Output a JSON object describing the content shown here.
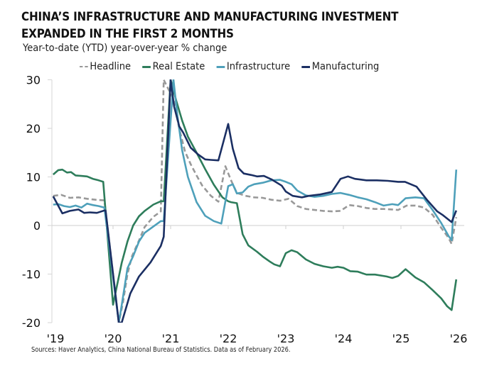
{
  "chart_data": {
    "type": "line",
    "title": "CHINA’S INFRASTRUCTURE AND MANUFACTURING INVESTMENT EXPANDED IN THE FIRST 2 MONTHS",
    "subtitle": "Year-to-date (YTD) year-over-year % change",
    "xlabel": "",
    "ylabel": "",
    "ylim": [
      -20,
      30
    ],
    "xlim": [
      2019,
      2026
    ],
    "yticks": [
      30,
      20,
      10,
      0,
      -10,
      -20
    ],
    "ytick_labels": [
      "30",
      "20",
      "10",
      "0",
      "-10",
      "-20"
    ],
    "xticks": [
      2019,
      2020,
      2021,
      2022,
      2023,
      2024,
      2025,
      2026
    ],
    "xtick_labels": [
      "'19",
      "'20",
      "'21",
      "'22",
      "'23",
      "'24",
      "'25",
      "'26"
    ],
    "grid": false,
    "legend_position": "top",
    "series": [
      {
        "name": "Headline",
        "color": "#999999",
        "style": "dashed",
        "x": [
          2018.96,
          2019.1,
          2019.25,
          2019.4,
          2019.55,
          2019.7,
          2019.83,
          2019.85,
          2020.1,
          2020.17,
          2020.25,
          2020.33,
          2020.45,
          2020.55,
          2020.7,
          2020.83,
          2020.88,
          2021.05,
          2021.15,
          2021.25,
          2021.35,
          2021.45,
          2021.55,
          2021.7,
          2021.83,
          2021.95,
          2022.05,
          2022.15,
          2022.3,
          2022.45,
          2022.6,
          2022.75,
          2022.9,
          2023.05,
          2023.2,
          2023.35,
          2023.5,
          2023.65,
          2023.8,
          2023.95,
          2024.1,
          2024.25,
          2024.4,
          2024.55,
          2024.7,
          2024.85,
          2024.95,
          2025.1,
          2025.25,
          2025.4,
          2025.55,
          2025.7,
          2025.83,
          2025.88,
          2025.96
        ],
        "values": [
          6.1,
          6.3,
          5.7,
          5.8,
          5.5,
          5.3,
          5.2,
          5.2,
          -20,
          -16,
          -10,
          -6.3,
          -3.1,
          -0.3,
          1.8,
          2.9,
          30,
          26,
          19.9,
          15.2,
          12.6,
          10.3,
          8.2,
          6.1,
          4.9,
          12.2,
          9.3,
          6.7,
          6.1,
          5.8,
          5.7,
          5.3,
          5.1,
          5.5,
          4.0,
          3.4,
          3.2,
          3.0,
          2.9,
          3.0,
          4.2,
          4.0,
          3.6,
          3.4,
          3.4,
          3.3,
          3.2,
          4.1,
          4.1,
          3.7,
          2.2,
          -0.5,
          -2.6,
          -3.8,
          1.7
        ]
      },
      {
        "name": "Real Estate",
        "color": "#2e7d5b",
        "style": "solid",
        "x": [
          2018.96,
          2019.05,
          2019.12,
          2019.2,
          2019.27,
          2019.35,
          2019.45,
          2019.55,
          2019.65,
          2019.75,
          2019.83,
          2020.0,
          2020.15,
          2020.25,
          2020.35,
          2020.45,
          2020.55,
          2020.7,
          2020.83,
          2020.88,
          2021.0,
          2021.1,
          2021.2,
          2021.3,
          2021.45,
          2021.6,
          2021.75,
          2021.9,
          2022.0,
          2022.05,
          2022.15,
          2022.25,
          2022.35,
          2022.5,
          2022.6,
          2022.72,
          2022.8,
          2022.9,
          2023.0,
          2023.1,
          2023.2,
          2023.35,
          2023.5,
          2023.65,
          2023.8,
          2023.9,
          2024.0,
          2024.12,
          2024.25,
          2024.4,
          2024.55,
          2024.75,
          2024.85,
          2024.95,
          2025.08,
          2025.25,
          2025.4,
          2025.55,
          2025.7,
          2025.8,
          2025.88,
          2025.96
        ],
        "values": [
          10.5,
          11.4,
          11.5,
          10.9,
          11.0,
          10.3,
          10.2,
          10.1,
          9.6,
          9.3,
          9.0,
          -16.3,
          -7.7,
          -3.3,
          0.0,
          1.9,
          3.0,
          4.3,
          5.0,
          5.0,
          30,
          25.6,
          21.6,
          18.3,
          15.0,
          11.6,
          8.4,
          5.8,
          5.0,
          4.8,
          4.6,
          -1.8,
          -4.1,
          -5.4,
          -6.4,
          -7.4,
          -8.0,
          -8.4,
          -5.7,
          -5.1,
          -5.5,
          -7.0,
          -7.9,
          -8.4,
          -8.7,
          -8.5,
          -8.7,
          -9.4,
          -9.5,
          -10.1,
          -10.1,
          -10.5,
          -10.8,
          -10.4,
          -9.0,
          -10.7,
          -11.7,
          -13.3,
          -15.0,
          -16.6,
          -17.4,
          -11.1
        ]
      },
      {
        "name": "Infrastructure",
        "color": "#4ea0ba",
        "style": "solid",
        "x": [
          2018.96,
          2019.05,
          2019.15,
          2019.25,
          2019.35,
          2019.45,
          2019.55,
          2019.65,
          2019.75,
          2019.85,
          2020.1,
          2020.15,
          2020.25,
          2020.35,
          2020.45,
          2020.55,
          2020.7,
          2020.83,
          2020.88,
          2021.05,
          2021.12,
          2021.2,
          2021.3,
          2021.45,
          2021.6,
          2021.75,
          2021.88,
          2022.0,
          2022.08,
          2022.15,
          2022.25,
          2022.35,
          2022.45,
          2022.6,
          2022.75,
          2022.9,
          2023.0,
          2023.1,
          2023.2,
          2023.35,
          2023.5,
          2023.65,
          2023.8,
          2023.95,
          2024.1,
          2024.25,
          2024.4,
          2024.55,
          2024.7,
          2024.85,
          2024.95,
          2025.08,
          2025.25,
          2025.4,
          2025.55,
          2025.7,
          2025.83,
          2025.88,
          2025.96
        ],
        "values": [
          4.3,
          4.4,
          4.0,
          3.8,
          4.1,
          3.7,
          4.5,
          4.2,
          4.0,
          3.7,
          -20,
          -16.4,
          -8.8,
          -6.3,
          -3.3,
          -1.5,
          -0.2,
          0.9,
          0.9,
          30,
          22.5,
          15.5,
          10.0,
          4.8,
          2.0,
          0.9,
          0.4,
          8.1,
          8.5,
          6.6,
          6.8,
          8.0,
          8.5,
          8.8,
          9.3,
          9.4,
          9.0,
          8.5,
          7.2,
          6.2,
          5.9,
          6.1,
          6.5,
          6.7,
          6.3,
          5.8,
          5.4,
          4.8,
          4.1,
          4.4,
          4.2,
          5.6,
          5.8,
          5.6,
          3.2,
          0.5,
          -2.2,
          -3.0,
          11.5
        ]
      },
      {
        "name": "Manufacturing",
        "color": "#1b2f63",
        "style": "solid",
        "x": [
          2018.96,
          2019.12,
          2019.25,
          2019.4,
          2019.5,
          2019.6,
          2019.72,
          2019.85,
          2019.87,
          2020.1,
          2020.15,
          2020.3,
          2020.45,
          2020.65,
          2020.83,
          2020.88,
          2021.0,
          2021.06,
          2021.15,
          2021.22,
          2021.35,
          2021.48,
          2021.6,
          2021.7,
          2021.83,
          2022.0,
          2022.08,
          2022.18,
          2022.27,
          2022.4,
          2022.5,
          2022.62,
          2022.75,
          2022.93,
          2023.0,
          2023.12,
          2023.28,
          2023.4,
          2023.6,
          2023.8,
          2023.95,
          2024.08,
          2024.2,
          2024.4,
          2024.58,
          2024.77,
          2024.95,
          2025.07,
          2025.27,
          2025.45,
          2025.63,
          2025.72,
          2025.88,
          2025.96
        ],
        "values": [
          6.0,
          2.5,
          3.0,
          3.3,
          2.6,
          2.7,
          2.6,
          3.1,
          3.1,
          -20,
          -20,
          -14.0,
          -10.5,
          -7.6,
          -4.2,
          -2.3,
          30,
          24.5,
          20.4,
          19.1,
          16.0,
          14.6,
          13.6,
          13.5,
          13.4,
          20.9,
          15.8,
          11.8,
          10.7,
          10.4,
          10.1,
          10.2,
          9.5,
          8.2,
          7.0,
          6.1,
          5.8,
          6.1,
          6.4,
          6.9,
          9.6,
          10.1,
          9.6,
          9.3,
          9.3,
          9.2,
          9.0,
          9.0,
          8.0,
          5.3,
          2.9,
          2.2,
          0.7,
          3.1
        ]
      }
    ],
    "source": "Sources: Haver Analytics, China National Bureau of Statistics. Data as of February 2026."
  }
}
